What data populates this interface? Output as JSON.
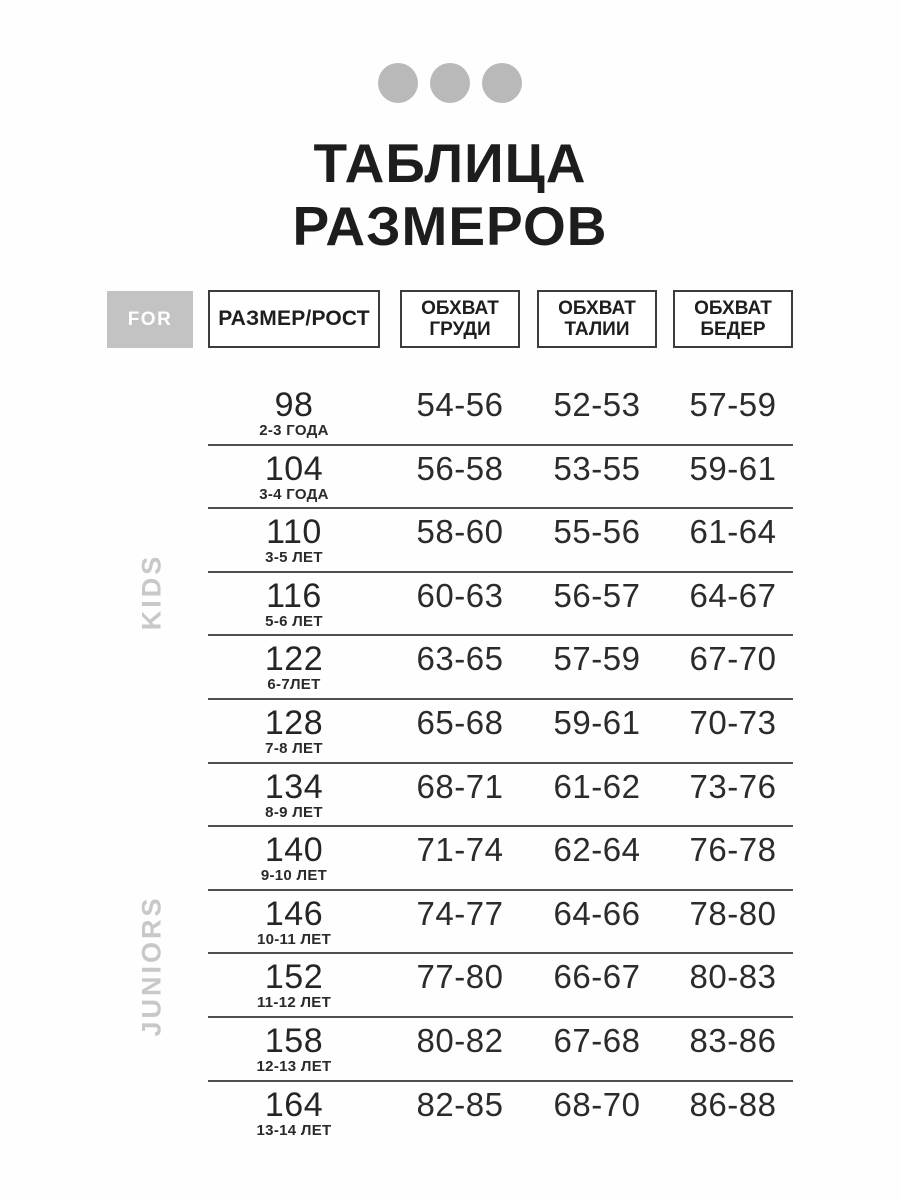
{
  "title": {
    "line1": "ТАБЛИЦА",
    "line2": "РАЗМЕРОВ"
  },
  "decor": {
    "dot_color": "#b9b9b9",
    "dots_count": 3
  },
  "header": {
    "for_label": "FOR",
    "size_column": "РАЗМЕР/РОСТ",
    "chest": {
      "line1": "ОБХВАТ",
      "line2": "ГРУДИ"
    },
    "waist": {
      "line1": "ОБХВАТ",
      "line2": "ТАЛИИ"
    },
    "hips": {
      "line1": "ОБХВАТ",
      "line2": "БЕДЕР"
    }
  },
  "side_labels": {
    "kids": "KIDS",
    "juniors": "JUNIORS"
  },
  "colors": {
    "title_text": "#1d1d1d",
    "for_box_bg": "#c3c3c3",
    "for_box_text": "#ffffff",
    "header_border": "#3c3c3c",
    "row_line": "#4f4f4f",
    "side_label_text": "#c8c8c8",
    "dot": "#b9b9b9",
    "value_text": "#2b2b2b"
  },
  "table": {
    "rows": [
      {
        "size": "98",
        "age": "2-3 ГОДА",
        "chest": "54-56",
        "waist": "52-53",
        "hips": "57-59"
      },
      {
        "size": "104",
        "age": "3-4 ГОДА",
        "chest": "56-58",
        "waist": "53-55",
        "hips": "59-61"
      },
      {
        "size": "110",
        "age": "3-5 ЛЕТ",
        "chest": "58-60",
        "waist": "55-56",
        "hips": "61-64"
      },
      {
        "size": "116",
        "age": "5-6 ЛЕТ",
        "chest": "60-63",
        "waist": "56-57",
        "hips": "64-67"
      },
      {
        "size": "122",
        "age": "6-7ЛЕТ",
        "chest": "63-65",
        "waist": "57-59",
        "hips": "67-70"
      },
      {
        "size": "128",
        "age": "7-8 ЛЕТ",
        "chest": "65-68",
        "waist": "59-61",
        "hips": "70-73"
      },
      {
        "size": "134",
        "age": "8-9 ЛЕТ",
        "chest": "68-71",
        "waist": "61-62",
        "hips": "73-76"
      },
      {
        "size": "140",
        "age": "9-10 ЛЕТ",
        "chest": "71-74",
        "waist": "62-64",
        "hips": "76-78"
      },
      {
        "size": "146",
        "age": "10-11 ЛЕТ",
        "chest": "74-77",
        "waist": "64-66",
        "hips": "78-80"
      },
      {
        "size": "152",
        "age": "11-12 ЛЕТ",
        "chest": "77-80",
        "waist": "66-67",
        "hips": "80-83"
      },
      {
        "size": "158",
        "age": "12-13 ЛЕТ",
        "chest": "80-82",
        "waist": "67-68",
        "hips": "83-86"
      },
      {
        "size": "164",
        "age": "13-14 ЛЕТ",
        "chest": "82-85",
        "waist": "68-70",
        "hips": "86-88"
      }
    ]
  }
}
